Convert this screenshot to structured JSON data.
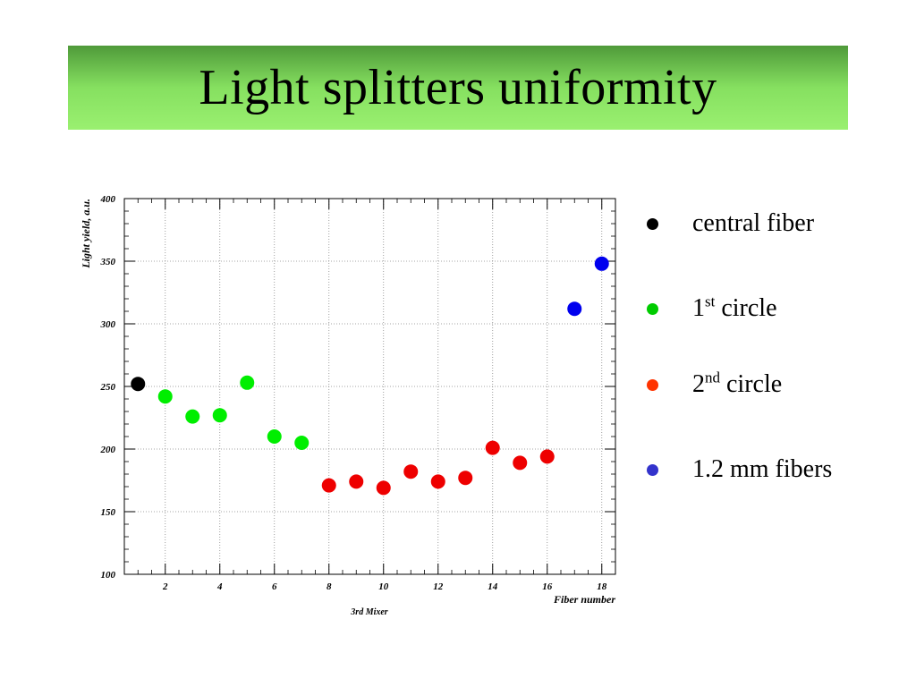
{
  "title": "Light splitters uniformity",
  "legend": [
    {
      "key": "central",
      "label": "central fiber",
      "sup": "",
      "suffix": "",
      "color": "#000000"
    },
    {
      "key": "circle1",
      "label": "1",
      "sup": "st",
      "suffix": " circle",
      "color": "#00cc00"
    },
    {
      "key": "circle2",
      "label": "2",
      "sup": "nd",
      "suffix": " circle",
      "color": "#ff3300"
    },
    {
      "key": "fibers12",
      "label": "1.2 mm fibers",
      "sup": "",
      "suffix": "",
      "color": "#3333cc"
    }
  ],
  "chart_data": {
    "type": "scatter",
    "xlabel": "Fiber number",
    "ylabel": "Light yield, a.u.",
    "bottom_label": "3rd Mixer",
    "xlim": [
      0.5,
      18.5
    ],
    "ylim": [
      100,
      400
    ],
    "xticks": [
      2,
      4,
      6,
      8,
      10,
      12,
      14,
      16,
      18
    ],
    "yticks": [
      100,
      150,
      200,
      250,
      300,
      350,
      400
    ],
    "grid": true,
    "series": [
      {
        "color": "#000000",
        "x": [
          1
        ],
        "y": [
          252
        ]
      },
      {
        "color": "#00ee00",
        "x": [
          2,
          3,
          4,
          5,
          6,
          7
        ],
        "y": [
          242,
          226,
          227,
          253,
          210,
          205
        ]
      },
      {
        "color": "#ee0000",
        "x": [
          8,
          9,
          10,
          11,
          12,
          13,
          14,
          15,
          16
        ],
        "y": [
          171,
          174,
          169,
          182,
          174,
          177,
          201,
          189,
          194
        ]
      },
      {
        "color": "#0000ee",
        "x": [
          17,
          18
        ],
        "y": [
          312,
          348
        ]
      }
    ]
  }
}
